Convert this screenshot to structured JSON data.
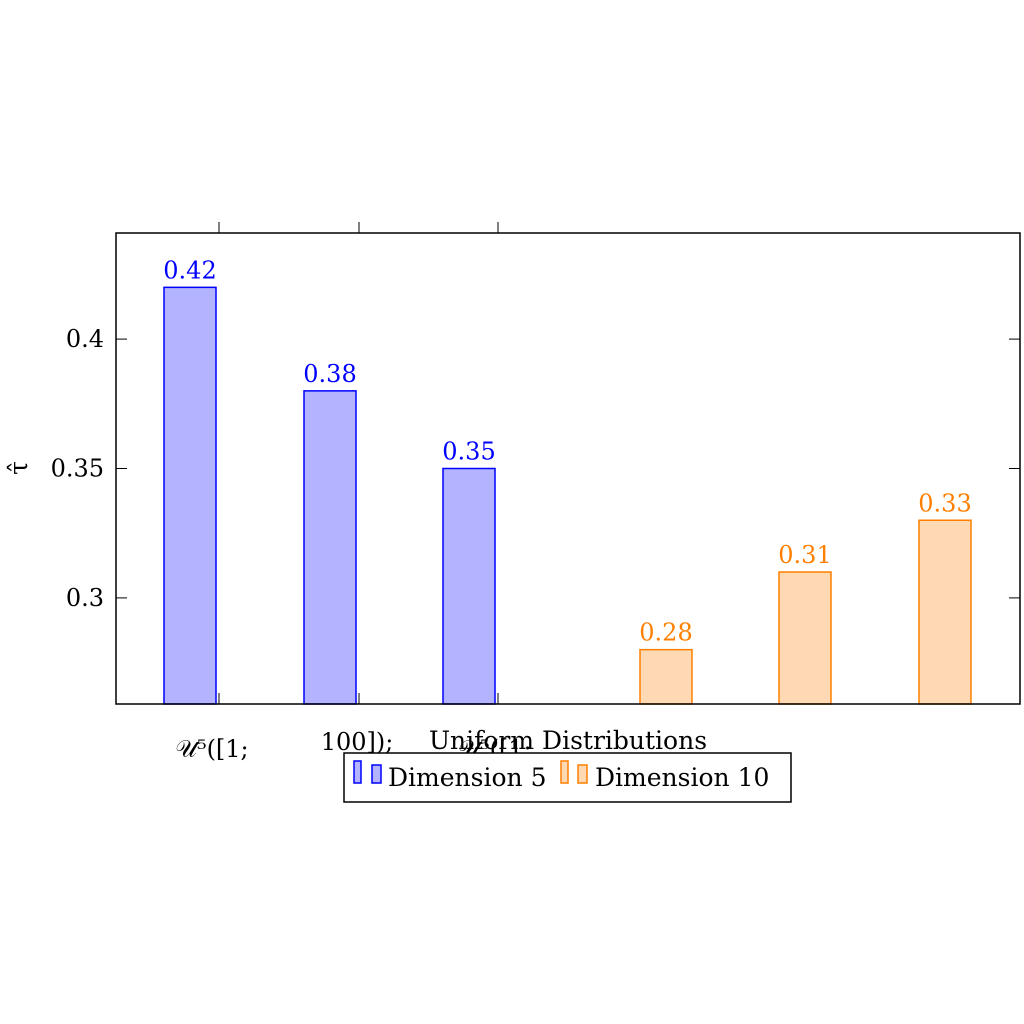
{
  "chart_data": {
    "type": "bar",
    "ylabel": "τ̂",
    "xlabel": "Uniform Distributions",
    "ylim": [
      0.259,
      0.441
    ],
    "yticks": [
      "0.3",
      "0.35",
      "0.4"
    ],
    "x_tick_labels": [
      "𝒰⁵([1;",
      "100]);",
      "𝒰⁵([1;"
    ],
    "series": [
      {
        "name": "Dimension 5",
        "color": "#0000ff",
        "fill": "#b3b3ff",
        "values": [
          0.42,
          0.38,
          0.35
        ],
        "labels": [
          "0.42",
          "0.38",
          "0.35"
        ]
      },
      {
        "name": "Dimension 10",
        "color": "#ff8000",
        "fill": "#ffd9b3",
        "values": [
          0.28,
          0.31,
          0.33
        ],
        "labels": [
          "0.28",
          "0.31",
          "0.33"
        ]
      }
    ],
    "grid": false,
    "legend": "bottom-center"
  }
}
